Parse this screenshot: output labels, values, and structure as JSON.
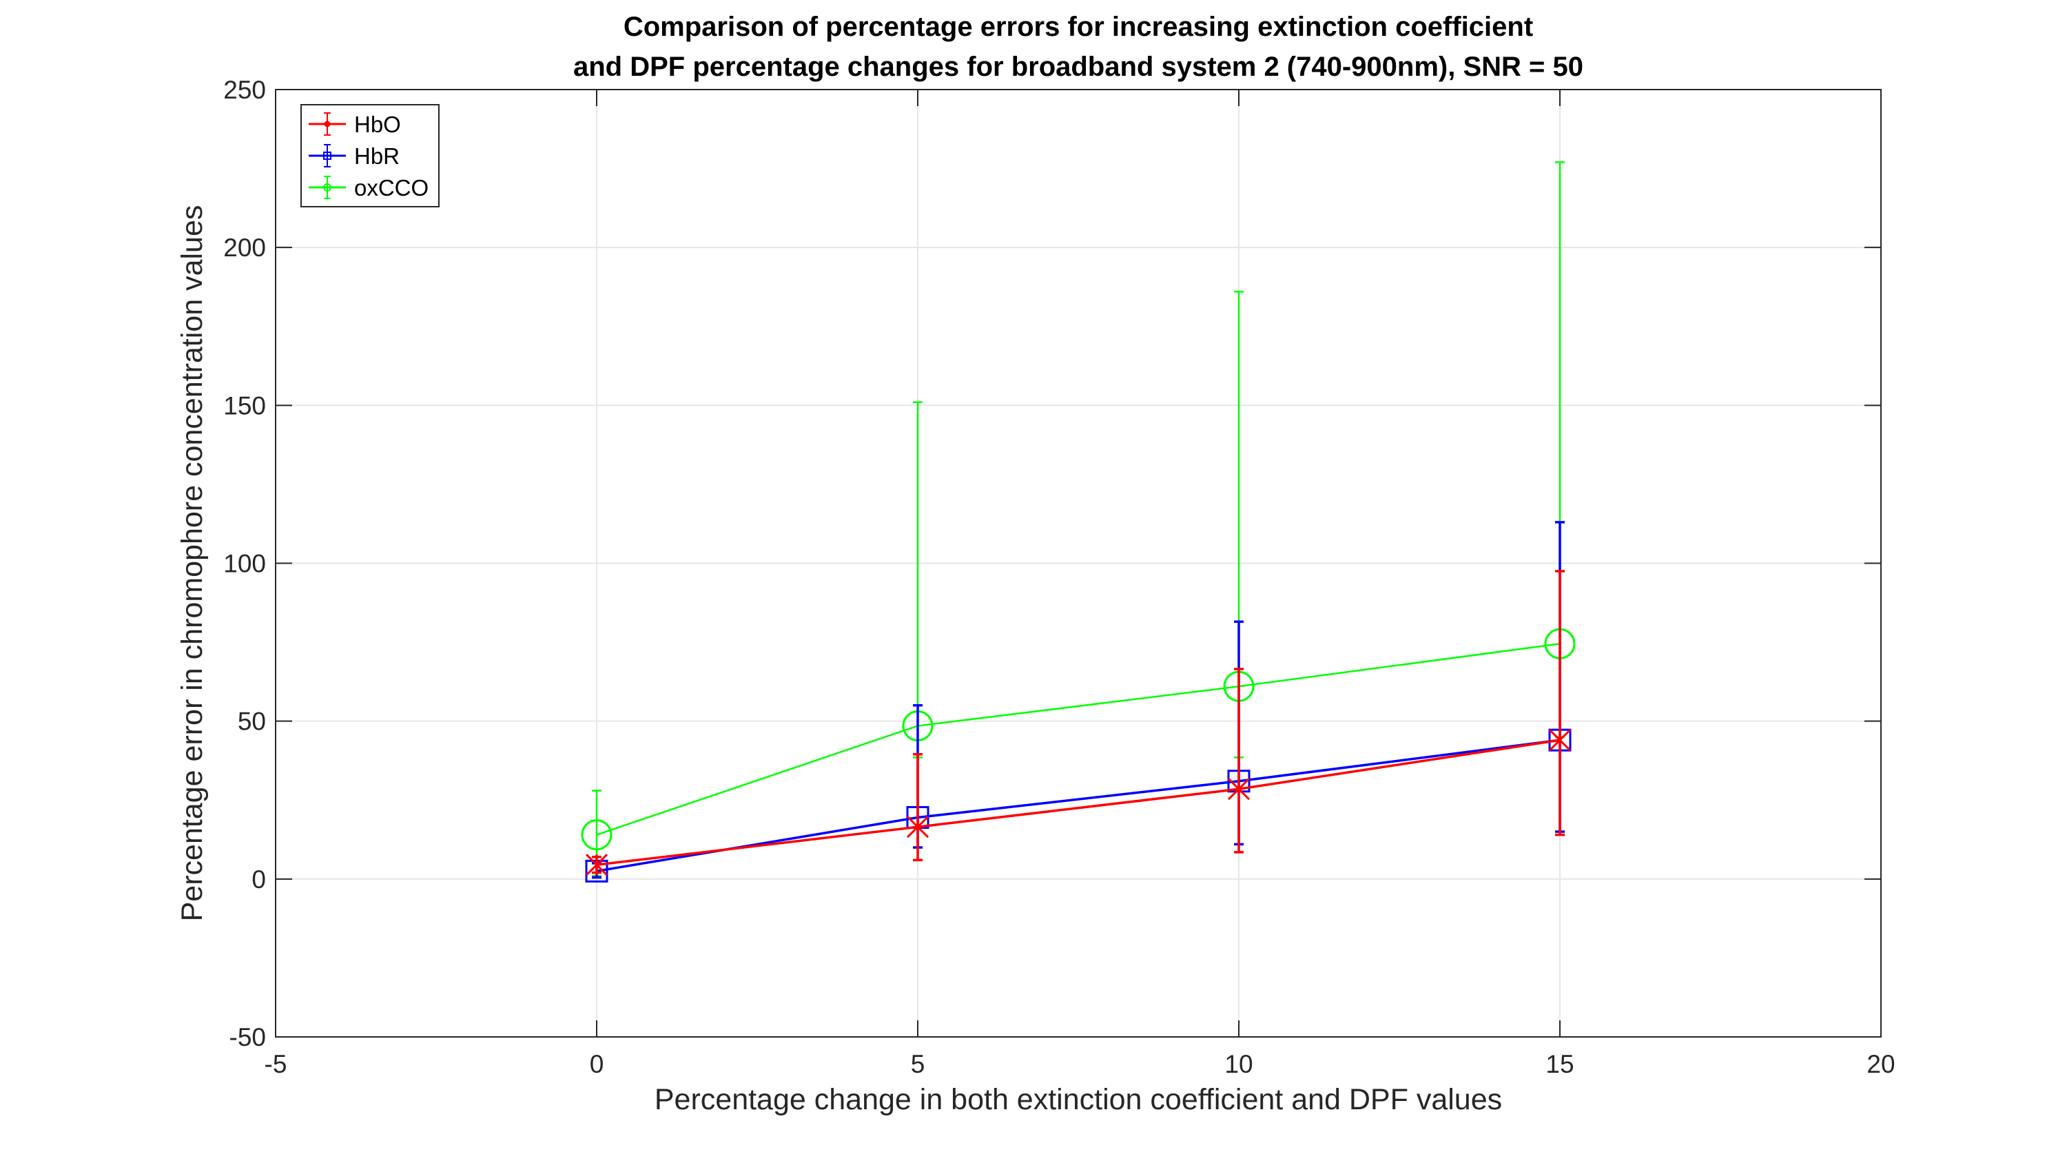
{
  "chart_data": {
    "type": "line",
    "title": [
      "Comparison of percentage errors for increasing extinction coefficient",
      "and DPF percentage changes for broadband system 2 (740-900nm), SNR = 50"
    ],
    "xlabel": "Percentage change in both extinction coefficient and DPF values",
    "ylabel": "Percentage error in chromophore concentration values",
    "xlim": [
      -5,
      20
    ],
    "ylim": [
      -50,
      250
    ],
    "xticks": [
      -5,
      0,
      5,
      10,
      15,
      20
    ],
    "yticks": [
      -50,
      0,
      50,
      100,
      150,
      200,
      250
    ],
    "grid": true,
    "legend_position": "top-left",
    "x": [
      0,
      5,
      10,
      15
    ],
    "series": [
      {
        "name": "HbO",
        "color": "#ff0000",
        "marker": "asterisk",
        "values": [
          4.5,
          16.5,
          28.5,
          44
        ],
        "error_low": [
          2,
          6,
          8.5,
          14
        ],
        "error_high": [
          7,
          39.5,
          66.5,
          97.5
        ]
      },
      {
        "name": "HbR",
        "color": "#0000ff",
        "marker": "square",
        "values": [
          2.5,
          19.5,
          31,
          44
        ],
        "error_low": [
          0.5,
          10,
          11,
          15
        ],
        "error_high": [
          5,
          55,
          81.5,
          113
        ]
      },
      {
        "name": "oxCCO",
        "color": "#00ff00",
        "marker": "circle",
        "values": [
          14,
          48.5,
          61,
          74.5
        ],
        "error_low": [
          1,
          38.5,
          38.5,
          45
        ],
        "error_high": [
          28,
          151,
          186,
          227
        ]
      }
    ]
  }
}
